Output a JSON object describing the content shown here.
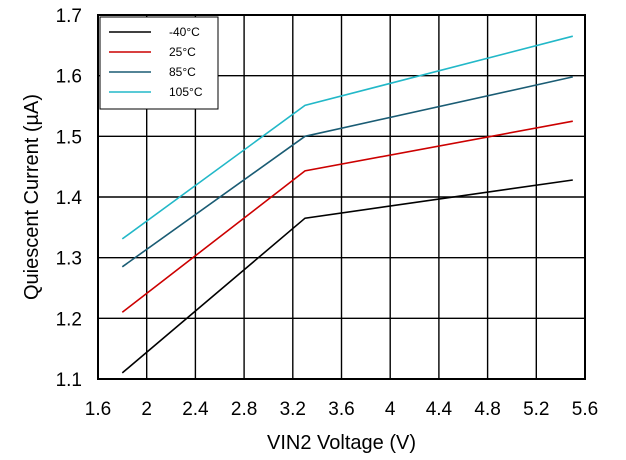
{
  "chart_data": {
    "type": "line",
    "title": "",
    "xlabel": "VIN2 Voltage (V)",
    "ylabel": "Quiescent Current (µA)",
    "xlim": [
      1.6,
      5.6
    ],
    "ylim": [
      1.1,
      1.7
    ],
    "xticks": [
      1.6,
      2,
      2.4,
      2.8,
      3.2,
      3.6,
      4,
      4.4,
      4.8,
      5.2,
      5.6
    ],
    "xtick_labels": [
      "1.6",
      "2",
      "2.4",
      "2.8",
      "3.2",
      "3.6",
      "4",
      "4.4",
      "4.8",
      "5.2",
      "5.6"
    ],
    "yticks": [
      1.1,
      1.2,
      1.3,
      1.4,
      1.5,
      1.6,
      1.7
    ],
    "ytick_labels": [
      "1.1",
      "1.2",
      "1.3",
      "1.4",
      "1.5",
      "1.6",
      "1.7"
    ],
    "grid": true,
    "legend_position": "top-left",
    "x": [
      1.8,
      3.3,
      5.5
    ],
    "series": [
      {
        "name": "-40°C",
        "color": "#000000",
        "values": [
          1.11,
          1.365,
          1.428
        ]
      },
      {
        "name": "25°C",
        "color": "#cc0000",
        "values": [
          1.21,
          1.443,
          1.525
        ]
      },
      {
        "name": "85°C",
        "color": "#1a5c74",
        "values": [
          1.285,
          1.5,
          1.598
        ]
      },
      {
        "name": "105°C",
        "color": "#22b8c8",
        "values": [
          1.331,
          1.551,
          1.665
        ]
      }
    ]
  }
}
